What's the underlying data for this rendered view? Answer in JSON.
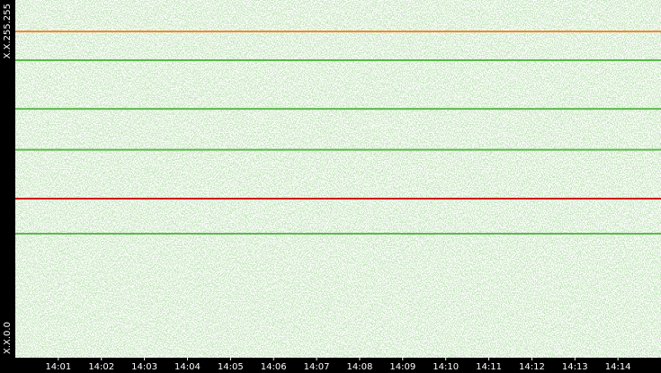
{
  "chart_data": {
    "type": "scatter",
    "xlim": [
      840,
      855
    ],
    "xticks": [
      {
        "value": 841,
        "label": "14:01"
      },
      {
        "value": 842,
        "label": "14:02"
      },
      {
        "value": 843,
        "label": "14:03"
      },
      {
        "value": 844,
        "label": "14:04"
      },
      {
        "value": 845,
        "label": "14:05"
      },
      {
        "value": 846,
        "label": "14:06"
      },
      {
        "value": 847,
        "label": "14:07"
      },
      {
        "value": 848,
        "label": "14:08"
      },
      {
        "value": 849,
        "label": "14:09"
      },
      {
        "value": 850,
        "label": "14:10"
      },
      {
        "value": 851,
        "label": "14:11"
      },
      {
        "value": 852,
        "label": "14:12"
      },
      {
        "value": 853,
        "label": "14:13"
      },
      {
        "value": 854,
        "label": "14:14"
      }
    ],
    "ylim": [
      0,
      65535
    ],
    "yticks": [
      {
        "value": 0,
        "label": "X.X.0.0"
      },
      {
        "value": 65535,
        "label": "X.X.255.255"
      }
    ],
    "series": [
      {
        "color": "#f08a30",
        "values": [
          59770
        ]
      },
      {
        "color": "#d01010",
        "values": [
          29150
        ]
      },
      {
        "color": "#5cb84c",
        "values": [
          54500,
          22720,
          45600,
          38100
        ]
      }
    ]
  }
}
